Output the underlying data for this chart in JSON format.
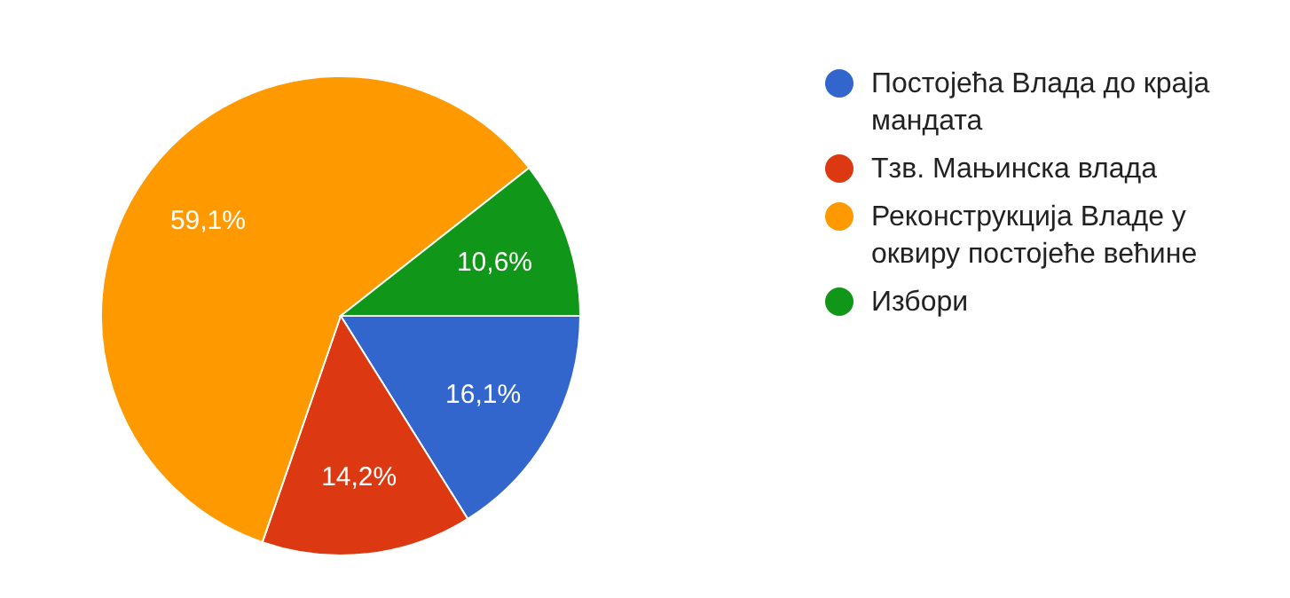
{
  "chart_data": {
    "type": "pie",
    "categories": [
      "Постојећа Влада до краја мандата",
      "Тзв. Мањинска влада",
      "Реконструкција Владе у оквиру постојеће већине",
      "Избори"
    ],
    "values": [
      16.1,
      14.2,
      59.1,
      10.6
    ],
    "colors": [
      "#3366cc",
      "#dc3912",
      "#ff9900",
      "#109618"
    ],
    "value_labels": [
      "16,1%",
      "14,2%",
      "59,1%",
      "10,6%"
    ],
    "legend": "right"
  }
}
